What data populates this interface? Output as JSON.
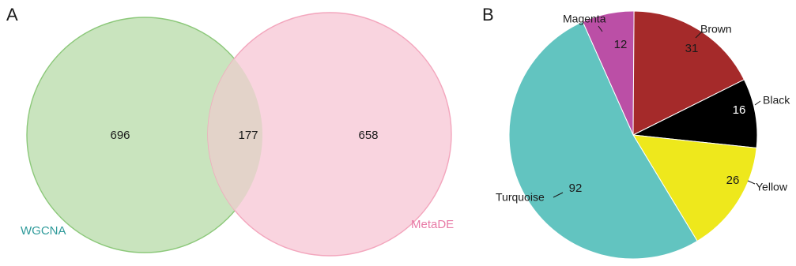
{
  "panels": {
    "a": "A",
    "b": "B"
  },
  "chart_data": [
    {
      "type": "venn",
      "sets": [
        {
          "name": "WGCNA",
          "only": 696,
          "fill": "#c9e4be",
          "stroke": "#8cc87a",
          "label_color": "#2e9a9a"
        },
        {
          "name": "MetaDE",
          "only": 658,
          "fill": "#f9d4df",
          "stroke": "#f3a6bd",
          "label_color": "#e87aa6"
        }
      ],
      "intersection": 177,
      "intersection_fill": "#e3d3c9"
    },
    {
      "type": "pie",
      "slices": [
        {
          "label": "Magenta",
          "value": 12,
          "color": "#bb4fa6"
        },
        {
          "label": "Brown",
          "value": 31,
          "color": "#a52a2a"
        },
        {
          "label": "Black",
          "value": 16,
          "color": "#000000"
        },
        {
          "label": "Yellow",
          "value": 26,
          "color": "#eee81c"
        },
        {
          "label": "Turquoise",
          "value": 92,
          "color": "#62c4c0"
        }
      ]
    }
  ]
}
